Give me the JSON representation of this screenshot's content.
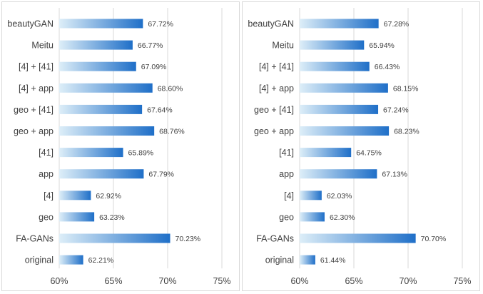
{
  "colors": {
    "bar_start": "#ddeef8",
    "bar_end": "#1f6fc8",
    "grid": "#d9d9d9",
    "text": "#404040"
  },
  "chart_data": [
    {
      "type": "bar",
      "orientation": "horizontal",
      "categories": [
        "beautyGAN",
        "Meitu",
        "[4] + [41]",
        "[4] + app",
        "geo + [41]",
        "geo + app",
        "[41]",
        "app",
        "[4]",
        "geo",
        "FA-GANs",
        "original"
      ],
      "values": [
        67.72,
        66.77,
        67.09,
        68.6,
        67.64,
        68.76,
        65.89,
        67.79,
        62.92,
        63.23,
        70.23,
        62.21
      ],
      "value_labels": [
        "67.72%",
        "66.77%",
        "67.09%",
        "68.60%",
        "67.64%",
        "68.76%",
        "65.89%",
        "67.79%",
        "62.92%",
        "63.23%",
        "70.23%",
        "62.21%"
      ],
      "xlim": [
        60,
        75
      ],
      "xticks": [
        60,
        65,
        70,
        75
      ],
      "xtick_labels": [
        "60%",
        "65%",
        "70%",
        "75%"
      ],
      "grid": "vertical",
      "title": "",
      "xlabel": "",
      "ylabel": ""
    },
    {
      "type": "bar",
      "orientation": "horizontal",
      "categories": [
        "beautyGAN",
        "Meitu",
        "[4] + [41]",
        "[4] + app",
        "geo + [41]",
        "geo + app",
        "[41]",
        "app",
        "[4]",
        "geo",
        "FA-GANs",
        "original"
      ],
      "values": [
        67.28,
        65.94,
        66.43,
        68.15,
        67.24,
        68.23,
        64.75,
        67.13,
        62.03,
        62.3,
        70.7,
        61.44
      ],
      "value_labels": [
        "67.28%",
        "65.94%",
        "66.43%",
        "68.15%",
        "67.24%",
        "68.23%",
        "64.75%",
        "67.13%",
        "62.03%",
        "62.30%",
        "70.70%",
        "61.44%"
      ],
      "xlim": [
        60,
        75
      ],
      "xticks": [
        60,
        65,
        70,
        75
      ],
      "xtick_labels": [
        "60%",
        "65%",
        "70%",
        "75%"
      ],
      "grid": "vertical",
      "title": "",
      "xlabel": "",
      "ylabel": ""
    }
  ]
}
